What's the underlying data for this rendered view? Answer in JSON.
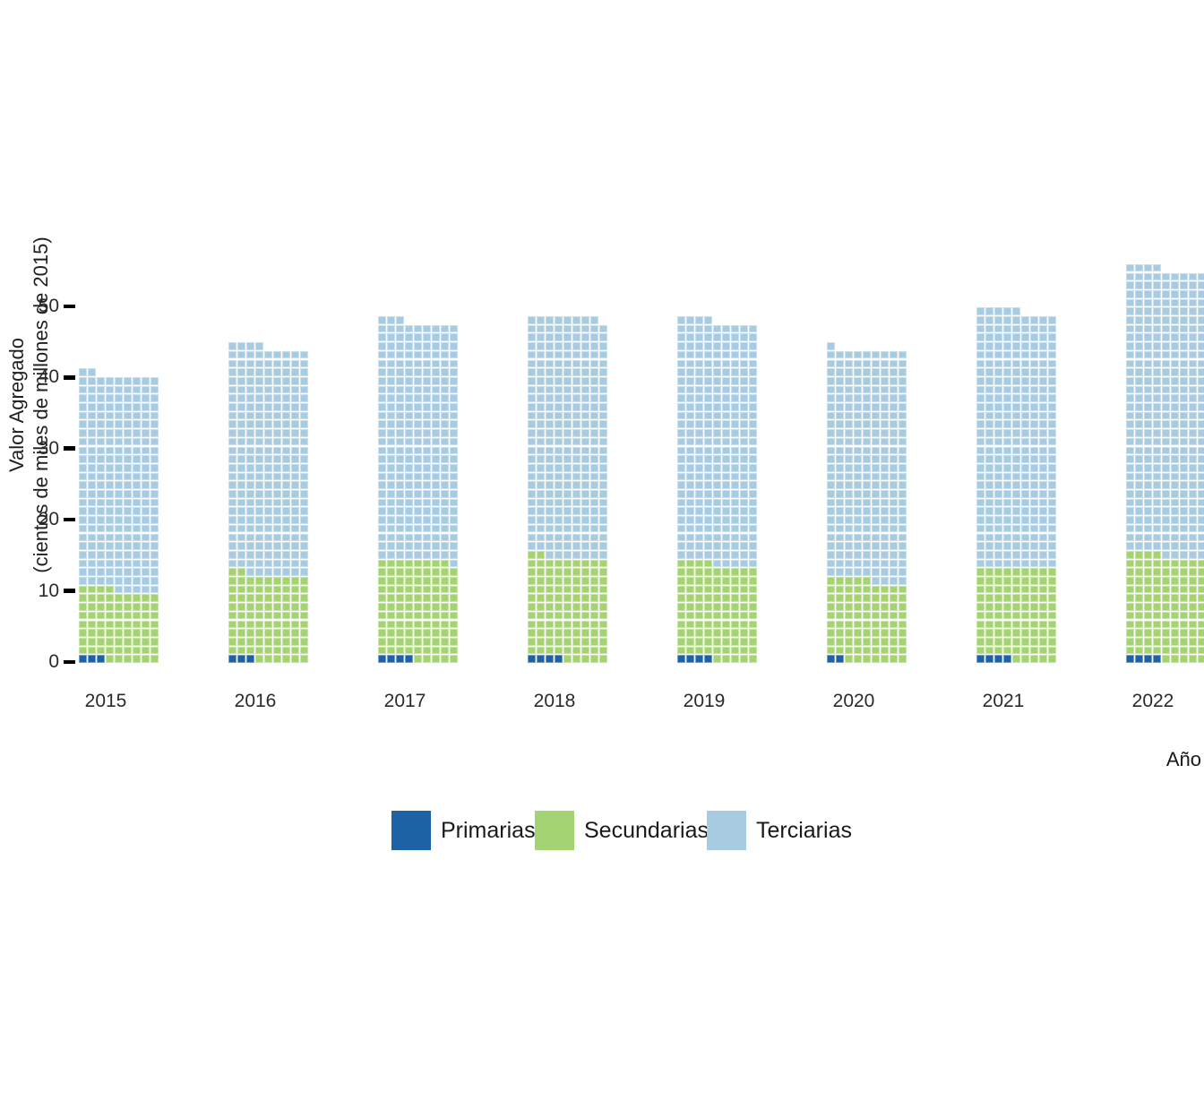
{
  "chart_data": {
    "type": "bar",
    "subtype": "waffle-stacked-bar",
    "title": "",
    "xlabel": "Año",
    "ylabel": "Valor Agregado (cientos de miles de millones de 2015)",
    "ylabel_line1": "Valor Agregado",
    "ylabel_line2": "(cientos de miles de millones de 2015)",
    "categories": [
      "2015",
      "2016",
      "2017",
      "2018",
      "2019",
      "2020",
      "2021",
      "2022"
    ],
    "series": [
      {
        "name": "Primarias",
        "color": "#1e62a6",
        "squares": [
          3,
          3,
          4,
          4,
          4,
          2,
          4,
          4
        ],
        "values_approx": [
          0.4,
          0.4,
          0.5,
          0.5,
          0.5,
          0.3,
          0.5,
          0.5
        ]
      },
      {
        "name": "Secundarias",
        "color": "#a4d472",
        "squares": [
          73,
          89,
          103,
          106,
          99,
          84,
          95,
          108
        ],
        "values_approx": [
          9.9,
          12.1,
          14.0,
          14.4,
          13.4,
          11.4,
          12.9,
          14.7
        ]
      },
      {
        "name": "Terciarias",
        "color": "#a7cbe1",
        "squares": [
          223,
          236,
          247,
          249,
          252,
          239,
          266,
          297
        ],
        "values_approx": [
          30.3,
          32.0,
          33.5,
          33.8,
          34.2,
          32.4,
          36.1,
          40.3
        ]
      }
    ],
    "totals_approx": [
      40.6,
      44.5,
      48.0,
      48.7,
      48.1,
      44.1,
      49.5,
      55.5
    ],
    "columns_per_waffle_bar": 9,
    "value_per_square_approx": 0.136,
    "yticks": [
      "0",
      "10",
      "20",
      "30",
      "40",
      "50"
    ],
    "ytick_values": [
      0,
      10,
      20,
      30,
      40,
      50
    ],
    "ylim": [
      0,
      56
    ],
    "grid": false,
    "legend_position": "bottom",
    "legend_items": [
      "Primarias",
      "Secundarias",
      "Terciarias"
    ]
  },
  "axis": {
    "x_title": "Año",
    "y_title_line1": "Valor Agregado",
    "y_title_line2": "(cientos de miles de millones de 2015)"
  },
  "legend": {
    "items": [
      {
        "label": "Primarias",
        "color": "#1e62a6"
      },
      {
        "label": "Secundarias",
        "color": "#a4d472"
      },
      {
        "label": "Terciarias",
        "color": "#a7cbe1"
      }
    ]
  }
}
